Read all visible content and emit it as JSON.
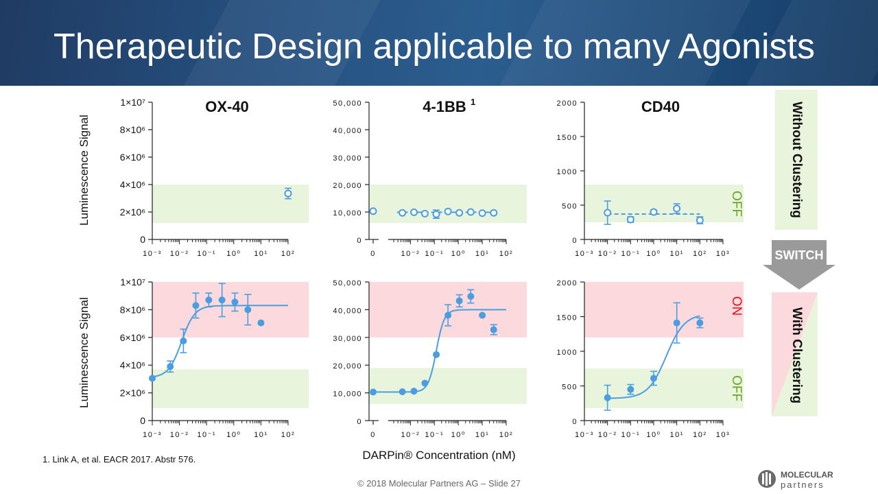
{
  "slide": {
    "title": "Therapeutic Design applicable to many Agonists",
    "footnote": "1. Link A, et al. EACR 2017. Abstr 576.",
    "footer": "© 2018 Molecular Partners AG  –  Slide 27",
    "logo": {
      "line1": "MOLECULAR",
      "line2": "partners"
    },
    "side_labels": {
      "without": "Without Clustering",
      "with": "With Clustering",
      "switch": "SWITCH"
    },
    "state_labels": {
      "off": "OFF",
      "on": "ON"
    },
    "x_axis_label": "DARPin® Concentration (nM)",
    "y_axis_label": "Luminescence Signal"
  },
  "colors": {
    "accent": "#4a9de0",
    "green_band": "#e8f5dc",
    "red_band": "#fcd9dc",
    "off_text": "#6aa121",
    "on_text": "#e0101c",
    "switch_gray": "#9a9a9a"
  },
  "chart_data": [
    {
      "id": "ox40-without",
      "type": "scatter",
      "title": "OX-40",
      "ylabel": "Luminescence Signal",
      "ylim": [
        0,
        10000000
      ],
      "y_ticks": [
        "0",
        "2×10⁶",
        "4×10⁶",
        "6×10⁶",
        "8×10⁶",
        "1×10⁷"
      ],
      "x_ticks": [
        "10⁻³",
        "10⁻²",
        "10⁻¹",
        "10⁰",
        "10¹",
        "10²"
      ],
      "x_scale": "log",
      "xlim": [
        0.001,
        100
      ],
      "bands": [
        {
          "color": "green",
          "from": 1200000,
          "to": 4000000
        }
      ],
      "marker": "open",
      "points": [
        {
          "x": 100,
          "y": 3350000,
          "err": 380000
        }
      ],
      "curve": "none"
    },
    {
      "id": "4-1bb-without",
      "type": "scatter",
      "title": "4-1BB",
      "title_sup": "1",
      "ylim": [
        0,
        50000
      ],
      "y_ticks": [
        "0",
        "10,000",
        "20,000",
        "30,000",
        "40,000",
        "50,000"
      ],
      "x_ticks": [
        "0",
        "10⁻²",
        "10⁻¹",
        "10⁰",
        "10¹",
        "10²"
      ],
      "x_scale": "log-with-zero",
      "xlim": [
        0.002,
        100
      ],
      "bands": [
        {
          "color": "green",
          "from": 6000,
          "to": 20000
        }
      ],
      "marker": "open",
      "points": [
        {
          "x": 0,
          "y": 10300,
          "err": 0
        },
        {
          "x": 0.0046,
          "y": 9700,
          "err": 0
        },
        {
          "x": 0.014,
          "y": 9900,
          "err": 0
        },
        {
          "x": 0.04,
          "y": 9400,
          "err": 0
        },
        {
          "x": 0.12,
          "y": 9200,
          "err": 1500
        },
        {
          "x": 0.37,
          "y": 10200,
          "err": 0
        },
        {
          "x": 1.1,
          "y": 9700,
          "err": 0
        },
        {
          "x": 3.3,
          "y": 10000,
          "err": 0
        },
        {
          "x": 10,
          "y": 9600,
          "err": 0
        },
        {
          "x": 30,
          "y": 9700,
          "err": 0
        }
      ],
      "curve": "flat",
      "curve_style": "dashed",
      "curve_level": 9900
    },
    {
      "id": "cd40-without",
      "type": "scatter",
      "title": "CD40",
      "ylim": [
        0,
        2000
      ],
      "y_ticks": [
        "0",
        "500",
        "1000",
        "1500",
        "2000"
      ],
      "x_ticks": [
        "10⁻³",
        "10⁻²",
        "10⁻¹",
        "10⁰",
        "10¹",
        "10²",
        "10³"
      ],
      "x_scale": "log",
      "xlim": [
        0.001,
        1000
      ],
      "bands": [
        {
          "color": "green",
          "from": 250,
          "to": 800
        }
      ],
      "marker": "open",
      "points": [
        {
          "x": 0.01,
          "y": 390,
          "err": 170
        },
        {
          "x": 0.1,
          "y": 290,
          "err": 40
        },
        {
          "x": 1,
          "y": 400,
          "err": 30
        },
        {
          "x": 10,
          "y": 450,
          "err": 70
        },
        {
          "x": 100,
          "y": 280,
          "err": 50
        }
      ],
      "curve": "flat",
      "curve_style": "dashed",
      "curve_level": 370
    },
    {
      "id": "ox40-with",
      "type": "scatter",
      "ylabel": "Luminescence Signal",
      "ylim": [
        0,
        10000000
      ],
      "y_ticks": [
        "0",
        "2×10⁶",
        "4×10⁶",
        "6×10⁶",
        "8×10⁶",
        "1×10⁷"
      ],
      "x_ticks": [
        "10⁻³",
        "10⁻²",
        "10⁻¹",
        "10⁰",
        "10¹",
        "10²"
      ],
      "x_scale": "log",
      "xlim": [
        0.001,
        100
      ],
      "bands": [
        {
          "color": "green",
          "from": 900000,
          "to": 3700000
        },
        {
          "color": "red",
          "from": 6000000,
          "to": 10000000
        }
      ],
      "marker": "filled",
      "points": [
        {
          "x": 0.001,
          "y": 3050000,
          "err": 0
        },
        {
          "x": 0.0046,
          "y": 3900000,
          "err": 400000
        },
        {
          "x": 0.014,
          "y": 5750000,
          "err": 850000
        },
        {
          "x": 0.04,
          "y": 8300000,
          "err": 900000
        },
        {
          "x": 0.12,
          "y": 8700000,
          "err": 500000
        },
        {
          "x": 0.37,
          "y": 8700000,
          "err": 1200000
        },
        {
          "x": 1.1,
          "y": 8550000,
          "err": 650000
        },
        {
          "x": 3.3,
          "y": 8000000,
          "err": 1100000
        },
        {
          "x": 10,
          "y": 7050000,
          "err": 0
        }
      ],
      "curve": "sigmoid",
      "bottom": 3100000,
      "top": 8300000,
      "ec50": 0.012,
      "hill": 1.8,
      "curve_range": [
        0.001,
        100
      ]
    },
    {
      "id": "4-1bb-with",
      "type": "scatter",
      "ylim": [
        0,
        50000
      ],
      "y_ticks": [
        "0",
        "10,000",
        "20,000",
        "30,000",
        "40,000",
        "50,000"
      ],
      "x_ticks": [
        "0",
        "10⁻²",
        "10⁻¹",
        "10⁰",
        "10¹",
        "10²"
      ],
      "x_scale": "log-with-zero",
      "xlim": [
        0.002,
        100
      ],
      "bands": [
        {
          "color": "green",
          "from": 6000,
          "to": 19000
        },
        {
          "color": "red",
          "from": 30000,
          "to": 50000
        }
      ],
      "marker": "filled",
      "points": [
        {
          "x": 0,
          "y": 10300,
          "err": 0
        },
        {
          "x": 0.0046,
          "y": 10400,
          "err": 0
        },
        {
          "x": 0.014,
          "y": 10600,
          "err": 0
        },
        {
          "x": 0.04,
          "y": 13500,
          "err": 0
        },
        {
          "x": 0.12,
          "y": 23800,
          "err": 0
        },
        {
          "x": 0.37,
          "y": 38000,
          "err": 3800
        },
        {
          "x": 1.1,
          "y": 43200,
          "err": 2200
        },
        {
          "x": 3.3,
          "y": 44800,
          "err": 2400
        },
        {
          "x": 10,
          "y": 38000,
          "err": 0
        },
        {
          "x": 30,
          "y": 32800,
          "err": 1800
        }
      ],
      "curve": "sigmoid",
      "bottom": 10300,
      "top": 40000,
      "ec50": 0.12,
      "hill": 2.6,
      "curve_range": [
        0.002,
        100
      ]
    },
    {
      "id": "cd40-with",
      "type": "scatter",
      "ylim": [
        0,
        2000
      ],
      "y_ticks": [
        "0",
        "500",
        "1000",
        "1500",
        "2000"
      ],
      "x_ticks": [
        "10⁻³",
        "10⁻²",
        "10⁻¹",
        "10⁰",
        "10¹",
        "10²",
        "10³"
      ],
      "x_scale": "log",
      "xlim": [
        0.001,
        1000
      ],
      "bands": [
        {
          "color": "green",
          "from": 180,
          "to": 750
        },
        {
          "color": "red",
          "from": 1200,
          "to": 2000
        }
      ],
      "marker": "filled",
      "points": [
        {
          "x": 0.01,
          "y": 330,
          "err": 180
        },
        {
          "x": 0.1,
          "y": 450,
          "err": 70
        },
        {
          "x": 1,
          "y": 610,
          "err": 100
        },
        {
          "x": 10,
          "y": 1410,
          "err": 290
        },
        {
          "x": 100,
          "y": 1410,
          "err": 70
        }
      ],
      "curve": "sigmoid",
      "bottom": 320,
      "top": 1540,
      "ec50": 3.5,
      "hill": 1.1,
      "curve_range": [
        0.01,
        100
      ]
    }
  ]
}
